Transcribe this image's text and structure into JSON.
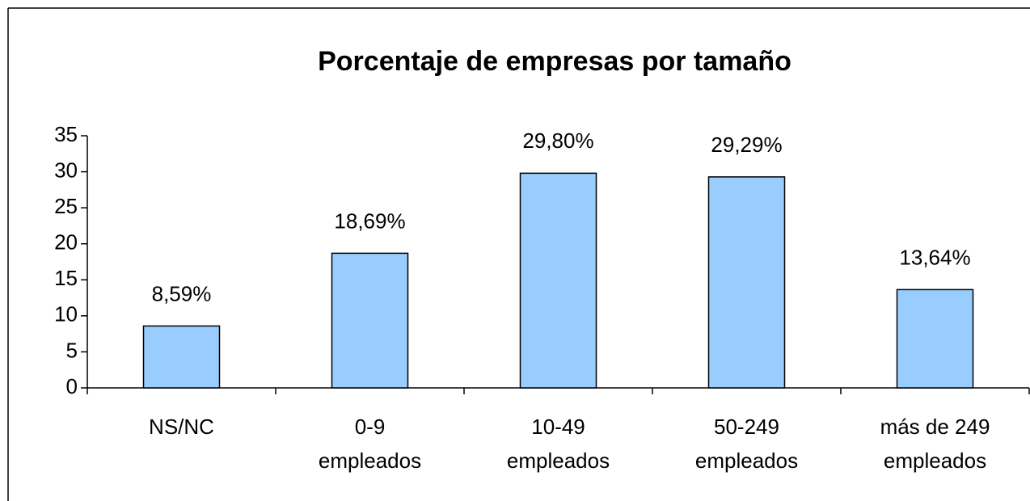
{
  "chart_data": {
    "type": "bar",
    "title": "Porcentaje de empresas por tamaño",
    "categories": [
      "NS/NC",
      "0-9\nempleados",
      "10-49\nempleados",
      "50-249\nempleados",
      "más de 249\nempleados"
    ],
    "values": [
      8.59,
      18.69,
      29.8,
      29.29,
      13.64
    ],
    "value_labels": [
      "8,59%",
      "18,69%",
      "29,80%",
      "29,29%",
      "13,64%"
    ],
    "color": "#99ccff",
    "ylim": [
      0,
      35
    ],
    "yticks": [
      0,
      5,
      10,
      15,
      20,
      25,
      30,
      35
    ],
    "grid": false
  }
}
